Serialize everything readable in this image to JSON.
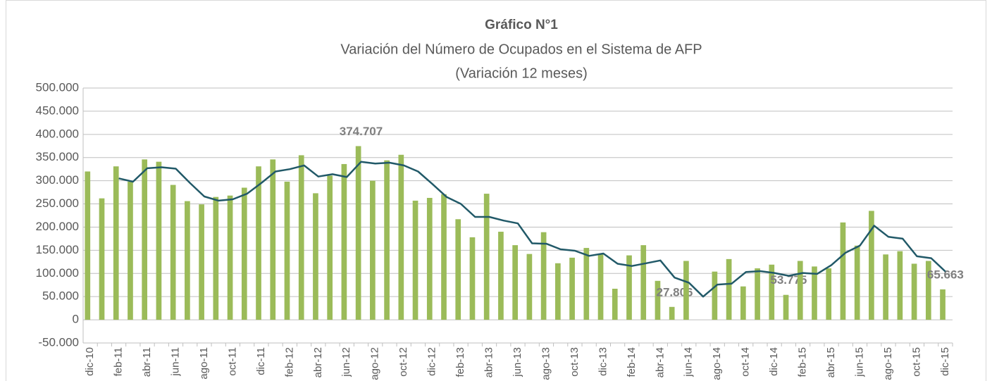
{
  "chart_data": {
    "type": "bar_line",
    "title": "Gráfico N°1",
    "subtitle": [
      "Variación del Número de Ocupados en el Sistema de AFP",
      "(Variación 12 meses)"
    ],
    "categories": [
      "dic-10",
      null,
      "feb-11",
      null,
      "abr-11",
      null,
      "jun-11",
      null,
      "ago-11",
      null,
      "oct-11",
      null,
      "dic-11",
      null,
      "feb-12",
      null,
      "abr-12",
      null,
      "jun-12",
      null,
      "ago-12",
      null,
      "oct-12",
      null,
      "dic-12",
      null,
      "feb-13",
      null,
      "abr-13",
      null,
      "jun-13",
      null,
      "ago-13",
      null,
      "oct-13",
      null,
      "dic-13",
      null,
      "feb-14",
      null,
      "abr-14",
      null,
      "jun-14",
      null,
      "ago-14",
      null,
      "oct-14",
      null,
      "dic-14",
      null,
      "feb-15",
      null,
      "abr-15",
      null,
      "jun-15",
      null,
      "ago-15",
      null,
      "oct-15",
      null,
      "dic-15"
    ],
    "series": [
      {
        "type": "bar",
        "color": "#9bbb59",
        "values": [
          320000,
          262000,
          331000,
          298000,
          346000,
          341000,
          291000,
          256000,
          249000,
          265000,
          268000,
          285000,
          331000,
          346000,
          298000,
          355000,
          273000,
          311000,
          336000,
          374707,
          300000,
          344000,
          356000,
          257000,
          263000,
          271000,
          217000,
          178000,
          272000,
          190000,
          161000,
          142000,
          189000,
          122000,
          134000,
          155000,
          142000,
          67000,
          139000,
          161000,
          84000,
          27806,
          127000,
          null,
          104000,
          131000,
          72000,
          111000,
          119000,
          53775,
          127000,
          115000,
          111000,
          210000,
          160000,
          235000,
          141000,
          148000,
          121000,
          127000,
          65663
        ],
        "value_labels": [
          null,
          null,
          null,
          null,
          null,
          null,
          null,
          null,
          null,
          null,
          null,
          null,
          null,
          null,
          null,
          null,
          null,
          null,
          null,
          "374.707",
          null,
          null,
          null,
          null,
          null,
          null,
          null,
          null,
          null,
          null,
          null,
          null,
          null,
          null,
          null,
          null,
          null,
          null,
          null,
          null,
          null,
          "27.806",
          null,
          null,
          null,
          null,
          null,
          null,
          null,
          "53.775",
          null,
          null,
          null,
          null,
          null,
          null,
          null,
          null,
          null,
          null,
          "65.663"
        ]
      },
      {
        "type": "line",
        "color": "#215968",
        "values": [
          null,
          null,
          305000,
          298000,
          327000,
          329000,
          326000,
          295000,
          266000,
          257000,
          260000,
          272000,
          295000,
          320000,
          325000,
          333000,
          309000,
          314000,
          308000,
          341000,
          337000,
          339000,
          333000,
          320000,
          293000,
          265000,
          250000,
          222000,
          222000,
          214000,
          208000,
          165000,
          164000,
          152000,
          149000,
          138000,
          143000,
          121000,
          116000,
          122000,
          128000,
          91000,
          80000,
          50000,
          76000,
          78000,
          103000,
          105000,
          101000,
          95000,
          101000,
          99000,
          118000,
          145000,
          160000,
          203000,
          179000,
          175000,
          137000,
          133000,
          104000
        ]
      }
    ],
    "ylim": [
      -50000,
      500000
    ],
    "yticks": [
      {
        "value": -50000,
        "label": "-50.000"
      },
      0,
      {
        "value": 50000,
        "label": "50.000"
      },
      {
        "value": 100000,
        "label": "100.000"
      },
      {
        "value": 150000,
        "label": "150.000"
      },
      {
        "value": 200000,
        "label": "200.000"
      },
      {
        "value": 250000,
        "label": "250.000"
      },
      {
        "value": 300000,
        "label": "300.000"
      },
      {
        "value": 350000,
        "label": "350.000"
      },
      {
        "value": 400000,
        "label": "400.000"
      },
      {
        "value": 450000,
        "label": "450.000"
      },
      {
        "value": 500000,
        "label": "500.000"
      }
    ],
    "grid": true
  }
}
